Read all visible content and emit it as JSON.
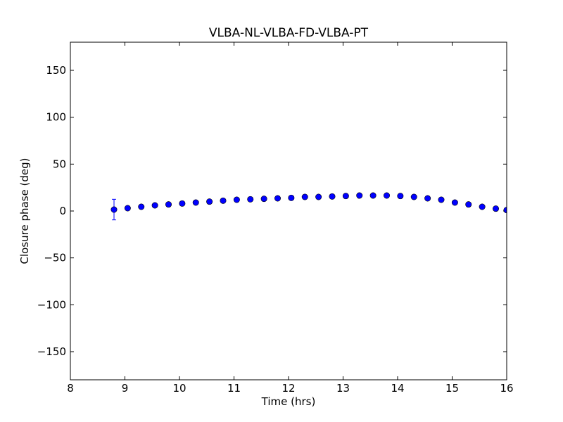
{
  "chart_data": {
    "type": "scatter",
    "title": "VLBA-NL-VLBA-FD-VLBA-PT",
    "xlabel": "Time (hrs)",
    "ylabel": "Closure phase (deg)",
    "xlim": [
      8,
      16
    ],
    "ylim": [
      -180,
      180
    ],
    "xticks": [
      "8",
      "9",
      "10",
      "11",
      "12",
      "13",
      "14",
      "15",
      "16"
    ],
    "xtick_values": [
      8,
      9,
      10,
      11,
      12,
      13,
      14,
      15,
      16
    ],
    "yticks": [
      "−150",
      "−100",
      "−50",
      "0",
      "50",
      "100",
      "150"
    ],
    "ytick_values": [
      -150,
      -100,
      -50,
      0,
      50,
      100,
      150
    ],
    "marker_color": "#0000ff",
    "errorbar_color": "#0000ff",
    "grid": false,
    "series": [
      {
        "x": [
          8.8,
          9.05,
          9.3,
          9.55,
          9.8,
          10.05,
          10.3,
          10.55,
          10.8,
          11.05,
          11.3,
          11.55,
          11.8,
          12.05,
          12.3,
          12.55,
          12.8,
          13.05,
          13.3,
          13.55,
          13.8,
          14.05,
          14.3,
          14.55,
          14.8,
          15.05,
          15.3,
          15.55,
          15.8,
          16.0
        ],
        "y": [
          1.5,
          3,
          4.5,
          6,
          7,
          8,
          9,
          10,
          11,
          12,
          12.5,
          13,
          13.5,
          14,
          15,
          15,
          15.5,
          16,
          16.5,
          16.5,
          16.5,
          16,
          15,
          13.5,
          12,
          9,
          7,
          4.5,
          2.5,
          1
        ],
        "yerr": [
          11,
          1.5,
          1.5,
          1.5,
          1.5,
          1.5,
          1.5,
          1.5,
          1.5,
          1.5,
          1.5,
          1.5,
          1.5,
          1.5,
          1.5,
          1.5,
          1.5,
          1.5,
          1.5,
          1.5,
          1.5,
          1.5,
          1.5,
          1.5,
          1.5,
          1.5,
          1.5,
          1.5,
          1.5,
          1.5
        ]
      }
    ]
  }
}
